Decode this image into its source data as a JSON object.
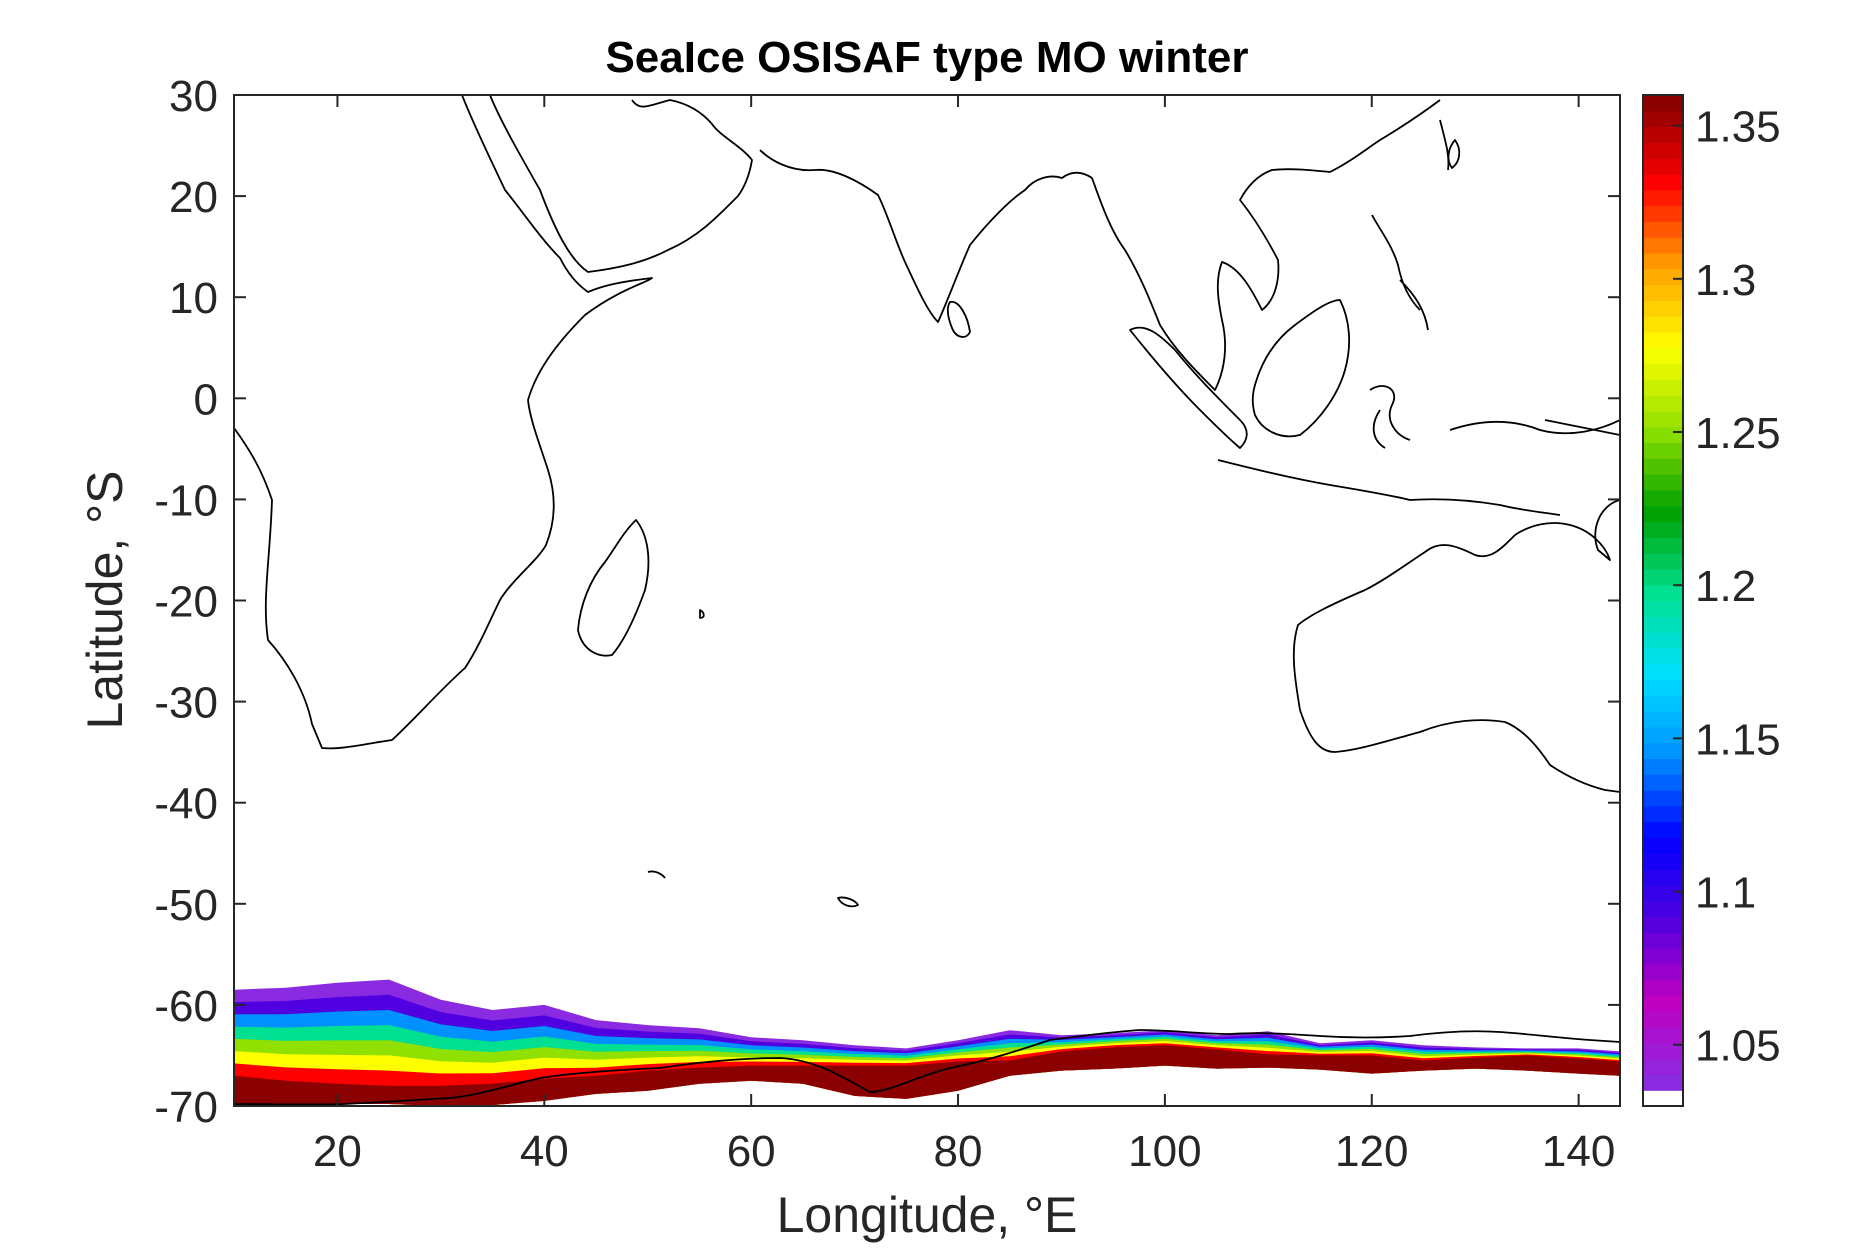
{
  "chart_data": {
    "type": "heatmap",
    "title": "SeaIce OSISAF type MO winter",
    "xlabel": "Longitude, °E",
    "ylabel": "Latitude, °S",
    "xlim": [
      10,
      144
    ],
    "ylim": [
      -70,
      30
    ],
    "x_ticks": [
      "20",
      "40",
      "60",
      "80",
      "100",
      "120",
      "140"
    ],
    "y_ticks": [
      "30",
      "20",
      "10",
      "0",
      "-10",
      "-20",
      "-30",
      "-40",
      "-50",
      "-60",
      "-70"
    ],
    "colorbar": {
      "range": [
        1.03,
        1.36
      ],
      "ticks": [
        "1.05",
        "1.1",
        "1.15",
        "1.2",
        "1.25",
        "1.3",
        "1.35"
      ],
      "colormap": [
        "#ffffff",
        "#8a2be2",
        "#c000c0",
        "#5000e0",
        "#0000ff",
        "#0090ff",
        "#00e0ff",
        "#00e090",
        "#00a000",
        "#90e000",
        "#ffff00",
        "#ffa000",
        "#ff0000",
        "#8b0000"
      ]
    },
    "ice_band_profile": {
      "lon": [
        10,
        15,
        20,
        25,
        30,
        35,
        40,
        45,
        50,
        55,
        60,
        65,
        70,
        75,
        80,
        85,
        90,
        95,
        100,
        105,
        110,
        115,
        120,
        125,
        130,
        135,
        140,
        144
      ],
      "outer_edge_lat": [
        -58.5,
        -58.3,
        -57.8,
        -57.5,
        -59.5,
        -60.5,
        -60.0,
        -61.5,
        -62.0,
        -62.3,
        -63.2,
        -63.5,
        -64.0,
        -64.3,
        -63.5,
        -62.5,
        -63.0,
        -62.8,
        -62.5,
        -63.0,
        -62.6,
        -63.8,
        -63.5,
        -64.0,
        -64.2,
        -64.3,
        -64.3,
        -64.6
      ],
      "dense_ice_lat": [
        -67.0,
        -67.5,
        -67.8,
        -68.0,
        -68.0,
        -67.8,
        -67.3,
        -67.0,
        -66.5,
        -66.2,
        -66.0,
        -66.0,
        -66.0,
        -66.0,
        -65.6,
        -65.5,
        -64.6,
        -64.2,
        -64.0,
        -64.4,
        -64.9,
        -65.0,
        -65.0,
        -65.5,
        -65.2,
        -65.0,
        -65.3,
        -65.6
      ],
      "coast_lat": [
        -70,
        -69.8,
        -69.8,
        -69.8,
        -70.0,
        -69.9,
        -69.5,
        -68.8,
        -68.5,
        -67.8,
        -67.5,
        -67.8,
        -69.0,
        -69.3,
        -68.5,
        -67.0,
        -66.5,
        -66.3,
        -66.0,
        -66.3,
        -66.2,
        -66.4,
        -66.8,
        -66.5,
        -66.3,
        -66.5,
        -66.8,
        -67.0
      ]
    }
  }
}
